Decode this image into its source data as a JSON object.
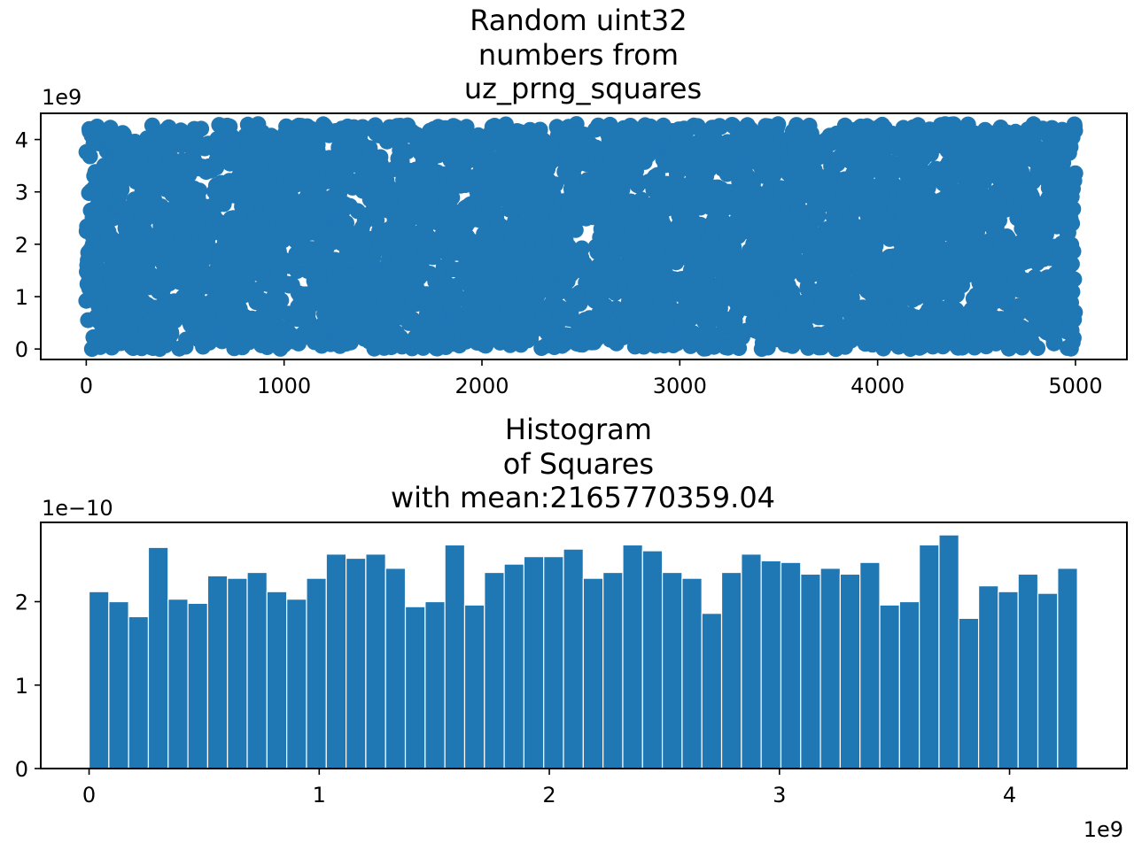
{
  "chart_data": [
    {
      "type": "scatter",
      "title": "Random uint32 \n numbers from \nuz_prng_squares",
      "xlim": [
        -230,
        5260
      ],
      "ylim": [
        -200000000.0,
        4500000000.0
      ],
      "x_ticks": [
        0,
        1000,
        2000,
        3000,
        4000,
        5000
      ],
      "x_tick_labels": [
        "0",
        "1000",
        "2000",
        "3000",
        "4000",
        "5000"
      ],
      "y_ticks": [
        0,
        1000000000.0,
        2000000000.0,
        3000000000.0,
        4000000000.0
      ],
      "y_tick_labels": [
        "0",
        "1",
        "2",
        "3",
        "4"
      ],
      "y_offset_label": "1e9",
      "n_points": 5000,
      "y_range": [
        0,
        4294967295
      ],
      "color": "#1f77b4",
      "grid": false
    },
    {
      "type": "bar",
      "title": "Histogram\n of Squares\nwith mean:2165770359.04",
      "xlim": [
        -210000000.0,
        4510000000.0
      ],
      "ylim": [
        0,
        2.95e-10
      ],
      "x_ticks": [
        0,
        1000000000.0,
        2000000000.0,
        3000000000.0,
        4000000000.0
      ],
      "x_tick_labels": [
        "0",
        "1",
        "2",
        "3",
        "4"
      ],
      "x_offset_label": "1e9",
      "y_ticks": [
        0,
        1e-10,
        2e-10
      ],
      "y_tick_labels": [
        "0",
        "1",
        "2"
      ],
      "y_offset_label": "1e−10",
      "bins": 50,
      "bin_range": [
        0,
        4294967295
      ],
      "values": [
        2.12e-10,
        2e-10,
        1.82e-10,
        2.65e-10,
        2.03e-10,
        1.98e-10,
        2.31e-10,
        2.28e-10,
        2.35e-10,
        2.12e-10,
        2.03e-10,
        2.28e-10,
        2.57e-10,
        2.52e-10,
        2.57e-10,
        2.4e-10,
        1.94e-10,
        2e-10,
        2.68e-10,
        1.96e-10,
        2.35e-10,
        2.45e-10,
        2.54e-10,
        2.54e-10,
        2.63e-10,
        2.28e-10,
        2.35e-10,
        2.68e-10,
        2.61e-10,
        2.35e-10,
        2.28e-10,
        1.86e-10,
        2.35e-10,
        2.57e-10,
        2.49e-10,
        2.47e-10,
        2.33e-10,
        2.4e-10,
        2.33e-10,
        2.47e-10,
        1.96e-10,
        2e-10,
        2.68e-10,
        2.8e-10,
        1.8e-10,
        2.19e-10,
        2.12e-10,
        2.33e-10,
        2.1e-10,
        2.4e-10
      ],
      "color": "#1f77b4",
      "edge_color": "#ffffff",
      "grid": false
    }
  ]
}
